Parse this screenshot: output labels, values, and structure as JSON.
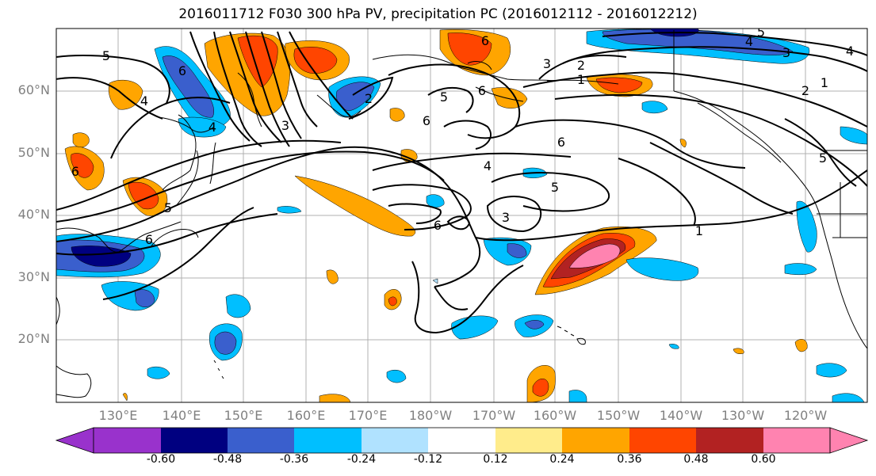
{
  "title": "2016011712 F030 300 hPa PV, precipitation PC (2016012112 - 2016012212)",
  "lat_labels": [
    "60°N",
    "50°N",
    "40°N",
    "30°N",
    "20°N"
  ],
  "lon_labels": [
    "130°E",
    "140°E",
    "150°E",
    "160°E",
    "170°E",
    "180°W",
    "170°W",
    "160°W",
    "150°W",
    "140°W",
    "130°W",
    "120°W"
  ],
  "contour_labels": [
    "5",
    "6",
    "4",
    "4",
    "6",
    "5",
    "6",
    "2",
    "3",
    "5",
    "6",
    "6",
    "6",
    "3",
    "2",
    "1",
    "5",
    "4",
    "3",
    "4",
    "2",
    "1",
    "6",
    "4",
    "5",
    "3",
    "6",
    "1",
    "5"
  ],
  "colorbar": {
    "labels": [
      "-0.60",
      "-0.48",
      "-0.36",
      "-0.24",
      "-0.12",
      "0.12",
      "0.24",
      "0.36",
      "0.48",
      "0.60"
    ],
    "colors": [
      "#9932cc",
      "#000080",
      "#3a5fcd",
      "#00bfff",
      "#b0e2ff",
      "#ffffff",
      "#ffec8b",
      "#ffa500",
      "#ff4500",
      "#b22222",
      "#ff83b0"
    ]
  }
}
